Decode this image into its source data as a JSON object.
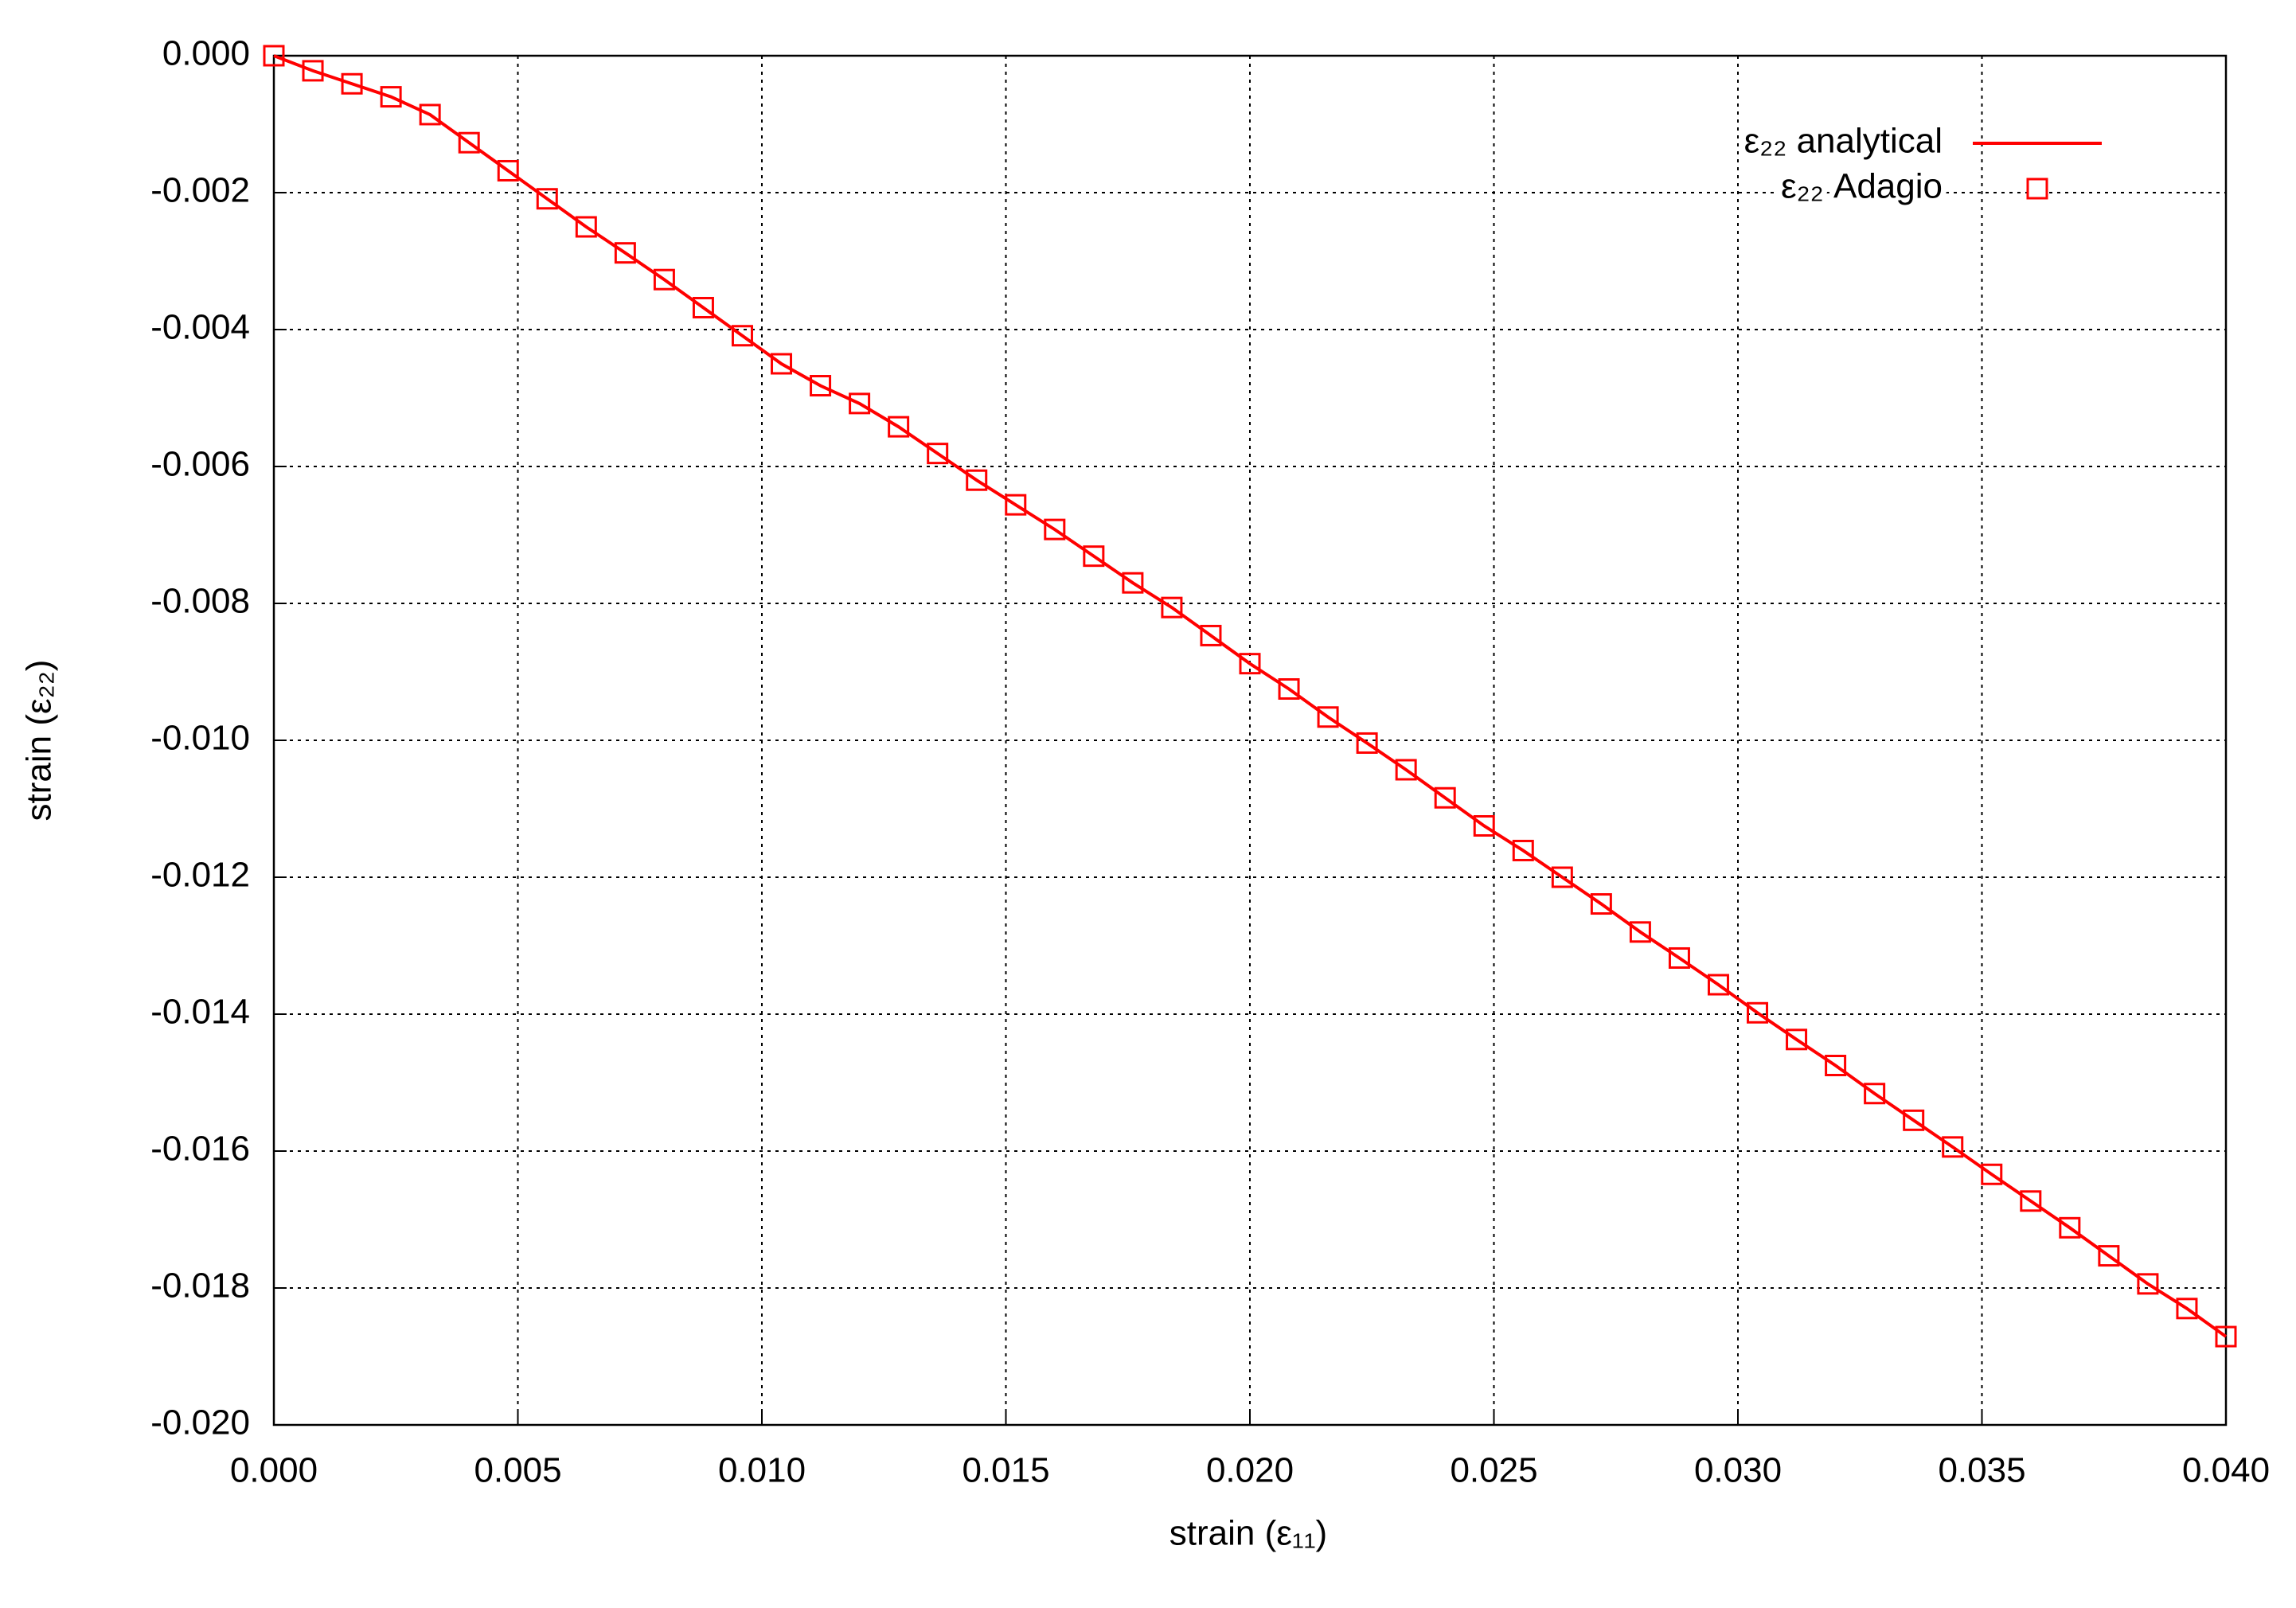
{
  "chart_data": {
    "type": "line",
    "xlabel": "strain (ε₁₁)",
    "ylabel": "strain (ε₂₂)",
    "xlim": [
      0,
      0.04
    ],
    "ylim": [
      -0.02,
      0
    ],
    "xticks": [
      {
        "value": 0,
        "label": "0.000"
      },
      {
        "value": 0.005,
        "label": "0.005"
      },
      {
        "value": 0.01,
        "label": "0.010"
      },
      {
        "value": 0.015,
        "label": "0.015"
      },
      {
        "value": 0.02,
        "label": "0.020"
      },
      {
        "value": 0.025,
        "label": "0.025"
      },
      {
        "value": 0.03,
        "label": "0.030"
      },
      {
        "value": 0.035,
        "label": "0.035"
      },
      {
        "value": 0.04,
        "label": "0.040"
      }
    ],
    "yticks": [
      {
        "value": 0,
        "label": "0.000"
      },
      {
        "value": -0.002,
        "label": "-0.002"
      },
      {
        "value": -0.004,
        "label": "-0.004"
      },
      {
        "value": -0.006,
        "label": "-0.006"
      },
      {
        "value": -0.008,
        "label": "-0.008"
      },
      {
        "value": -0.01,
        "label": "-0.010"
      },
      {
        "value": -0.012,
        "label": "-0.012"
      },
      {
        "value": -0.014,
        "label": "-0.014"
      },
      {
        "value": -0.016,
        "label": "-0.016"
      },
      {
        "value": -0.018,
        "label": "-0.018"
      },
      {
        "value": -0.02,
        "label": "-0.020"
      }
    ],
    "grid": true,
    "legend": "upper right",
    "x": [
      0,
      0.0008,
      0.0016,
      0.0024,
      0.0032,
      0.004,
      0.0048,
      0.0056,
      0.0064,
      0.0072,
      0.008,
      0.0088,
      0.0096,
      0.0104,
      0.0112,
      0.012,
      0.0128,
      0.0136,
      0.0144,
      0.0152,
      0.016,
      0.0168,
      0.0176,
      0.0184,
      0.0192,
      0.02,
      0.0208,
      0.0216,
      0.0224,
      0.0232,
      0.024,
      0.0248,
      0.0256,
      0.0264,
      0.0272,
      0.028,
      0.0288,
      0.0296,
      0.0304,
      0.0312,
      0.032,
      0.0328,
      0.0336,
      0.0344,
      0.0352,
      0.036,
      0.0368,
      0.0376,
      0.0384,
      0.0392,
      0.04
    ],
    "series": [
      {
        "name": "ε₂₂ analytical",
        "color": "#ff0000",
        "style": "line",
        "values": [
          0,
          -0.00022,
          -0.00041,
          -0.0006,
          -0.00086,
          -0.00127,
          -0.00168,
          -0.00209,
          -0.0025,
          -0.00288,
          -0.00327,
          -0.00368,
          -0.00409,
          -0.0045,
          -0.00482,
          -0.00508,
          -0.00542,
          -0.00581,
          -0.0062,
          -0.00656,
          -0.00692,
          -0.00731,
          -0.0077,
          -0.00806,
          -0.00847,
          -0.00888,
          -0.00925,
          -0.00966,
          -0.01004,
          -0.01043,
          -0.01084,
          -0.01125,
          -0.01161,
          -0.012,
          -0.01239,
          -0.0128,
          -0.01318,
          -0.01357,
          -0.01398,
          -0.01437,
          -0.01475,
          -0.01516,
          -0.01555,
          -0.01594,
          -0.01634,
          -0.01673,
          -0.01712,
          -0.01753,
          -0.01794,
          -0.0183,
          -0.01871
        ]
      },
      {
        "name": "ε₂₂ Adagio",
        "color": "#ff0000",
        "style": "marker",
        "values": [
          0,
          -0.00022,
          -0.00041,
          -0.0006,
          -0.00086,
          -0.00127,
          -0.00168,
          -0.00209,
          -0.0025,
          -0.00288,
          -0.00327,
          -0.00368,
          -0.00409,
          -0.0045,
          -0.00482,
          -0.00508,
          -0.00542,
          -0.00581,
          -0.0062,
          -0.00656,
          -0.00692,
          -0.00731,
          -0.0077,
          -0.00806,
          -0.00847,
          -0.00888,
          -0.00925,
          -0.00966,
          -0.01004,
          -0.01043,
          -0.01084,
          -0.01125,
          -0.01161,
          -0.012,
          -0.01239,
          -0.0128,
          -0.01318,
          -0.01357,
          -0.01398,
          -0.01437,
          -0.01475,
          -0.01516,
          -0.01555,
          -0.01594,
          -0.01634,
          -0.01673,
          -0.01712,
          -0.01753,
          -0.01794,
          -0.0183,
          -0.01871
        ]
      }
    ]
  }
}
